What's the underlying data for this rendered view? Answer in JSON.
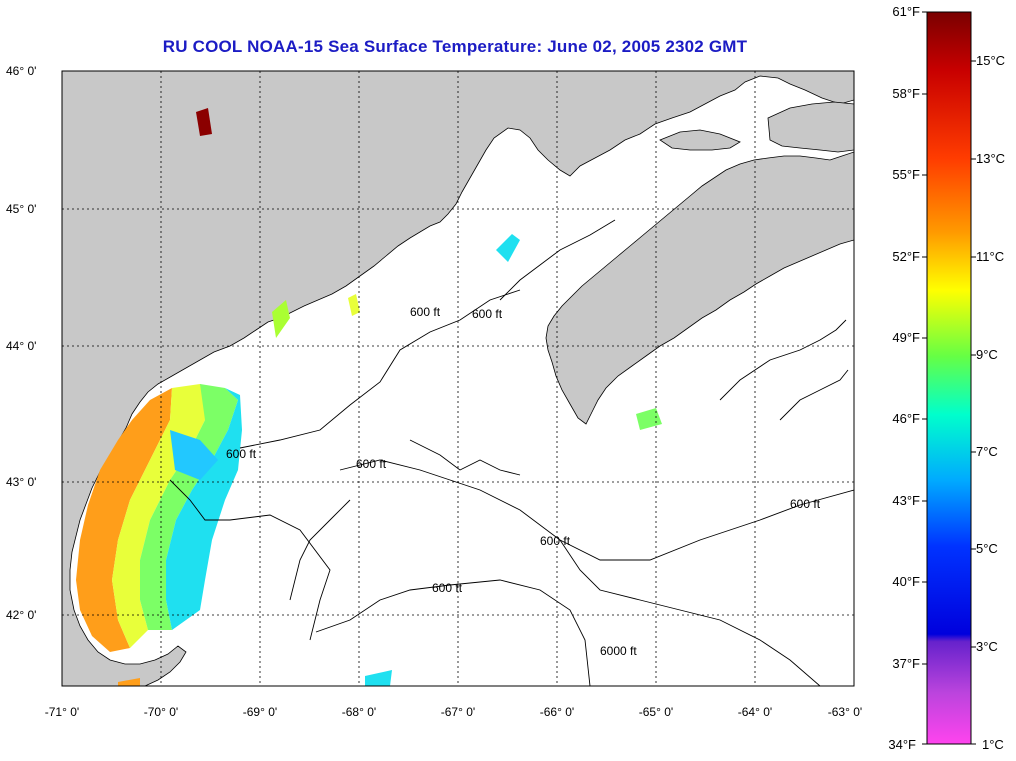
{
  "title": "RU COOL  NOAA-15  Sea Surface Temperature:  June 02, 2005 2302 GMT",
  "lat_labels": [
    "46° 0'",
    "45° 0'",
    "44° 0'",
    "43° 0'",
    "42° 0'"
  ],
  "lon_labels": [
    "-71° 0'",
    "-70° 0'",
    "-69° 0'",
    "-68° 0'",
    "-67° 0'",
    "-66° 0'",
    "-65° 0'",
    "-64° 0'",
    "-63° 0'"
  ],
  "contour_label": "600 ft",
  "contour_label_6000": "6000 ft",
  "colorbar": {
    "fahrenheit": [
      "61°F",
      "58°F",
      "55°F",
      "52°F",
      "49°F",
      "46°F",
      "43°F",
      "40°F",
      "37°F",
      "34°F"
    ],
    "celsius": [
      "15°C",
      "13°C",
      "11°C",
      "9°C",
      "7°C",
      "5°C",
      "3°C",
      "1°C"
    ],
    "colors": [
      "#8b0000",
      "#d40000",
      "#ff3300",
      "#ff8800",
      "#ffcc00",
      "#ffff00",
      "#aaff33",
      "#33ff88",
      "#00ffdd",
      "#00ccff",
      "#0077ff",
      "#0022ff",
      "#0000ee",
      "#7733cc",
      "#cc44dd",
      "#ff44ee"
    ]
  },
  "colors": {
    "land": "#c8c8c8",
    "title": "#1c1cc4",
    "water": "#ffffff"
  }
}
